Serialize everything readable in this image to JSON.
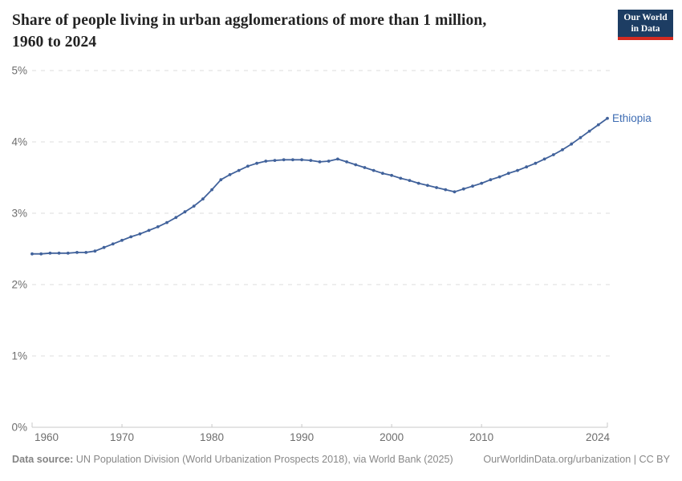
{
  "header": {
    "title_line1": "Share of people living in urban agglomerations of more than 1 million,",
    "title_line2": "1960 to 2024",
    "logo_line1": "Our World",
    "logo_line2": "in Data"
  },
  "footer": {
    "source_label": "Data source:",
    "source_rest": " UN Population Division (World Urbanization Prospects 2018), via World Bank (2025)",
    "link_text": "OurWorldinData.org/urbanization | CC BY"
  },
  "colors": {
    "line": "#41629b",
    "end_label": "#3e6cb3",
    "gridline": "#dcdcdc",
    "axis": "#c8c8c8",
    "tick_text": "#6e6e6e",
    "logo_bg": "#1d3d63",
    "logo_red": "#d42b21"
  },
  "chart_data": {
    "type": "line",
    "title": "Share of people living in urban agglomerations of more than 1 million, 1960 to 2024",
    "xlabel": "",
    "ylabel": "",
    "xlim": [
      1960,
      2024
    ],
    "ylim": [
      0,
      5
    ],
    "grid": "horizontal-dashed",
    "legend_position": "end-of-line-label",
    "x_ticks": [
      1960,
      1970,
      1980,
      1990,
      2000,
      2010,
      2024
    ],
    "y_tick_labels": [
      "0%",
      "1%",
      "2%",
      "3%",
      "4%",
      "5%"
    ],
    "series": [
      {
        "name": "Ethiopia",
        "x": [
          1960,
          1961,
          1962,
          1963,
          1964,
          1965,
          1966,
          1967,
          1968,
          1969,
          1970,
          1971,
          1972,
          1973,
          1974,
          1975,
          1976,
          1977,
          1978,
          1979,
          1980,
          1981,
          1982,
          1983,
          1984,
          1985,
          1986,
          1987,
          1988,
          1989,
          1990,
          1991,
          1992,
          1993,
          1994,
          1995,
          1996,
          1997,
          1998,
          1999,
          2000,
          2001,
          2002,
          2003,
          2004,
          2005,
          2006,
          2007,
          2008,
          2009,
          2010,
          2011,
          2012,
          2013,
          2014,
          2015,
          2016,
          2017,
          2018,
          2019,
          2020,
          2021,
          2022,
          2023,
          2024
        ],
        "values": [
          2.43,
          2.43,
          2.44,
          2.44,
          2.44,
          2.45,
          2.45,
          2.47,
          2.52,
          2.57,
          2.62,
          2.67,
          2.71,
          2.76,
          2.81,
          2.87,
          2.94,
          3.02,
          3.1,
          3.2,
          3.33,
          3.47,
          3.54,
          3.6,
          3.66,
          3.7,
          3.73,
          3.74,
          3.75,
          3.75,
          3.75,
          3.74,
          3.72,
          3.73,
          3.76,
          3.72,
          3.68,
          3.64,
          3.6,
          3.56,
          3.53,
          3.49,
          3.46,
          3.42,
          3.39,
          3.36,
          3.33,
          3.3,
          3.34,
          3.38,
          3.42,
          3.47,
          3.51,
          3.56,
          3.6,
          3.65,
          3.7,
          3.76,
          3.82,
          3.89,
          3.97,
          4.06,
          4.15,
          4.24,
          4.33
        ]
      }
    ]
  }
}
